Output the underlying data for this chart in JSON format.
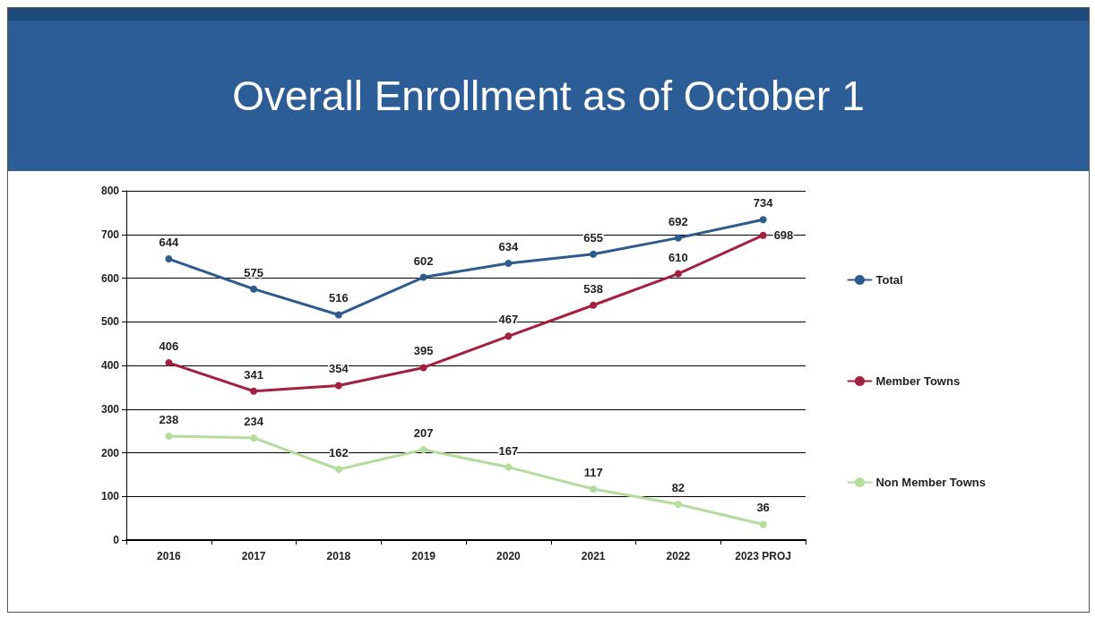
{
  "chart_data": {
    "type": "line",
    "title": "Overall Enrollment as of October 1",
    "categories": [
      "2016",
      "2017",
      "2018",
      "2019",
      "2020",
      "2021",
      "2022",
      "2023 PROJ"
    ],
    "series": [
      {
        "name": "Total",
        "color": "#2e5b8e",
        "values": [
          644,
          575,
          516,
          602,
          634,
          655,
          692,
          734
        ]
      },
      {
        "name": "Member Towns",
        "color": "#a3213f",
        "values": [
          406,
          341,
          354,
          395,
          467,
          538,
          610,
          698
        ]
      },
      {
        "name": "Non Member Towns",
        "color": "#b4dc9c",
        "values": [
          238,
          234,
          162,
          207,
          167,
          117,
          82,
          36
        ]
      }
    ],
    "ylim": [
      0,
      800
    ],
    "yticks": [
      0,
      100,
      200,
      300,
      400,
      500,
      600,
      700,
      800
    ],
    "grid": "y",
    "legend": "right",
    "data_labels": true,
    "marker": "circle",
    "line_style": "solid"
  }
}
